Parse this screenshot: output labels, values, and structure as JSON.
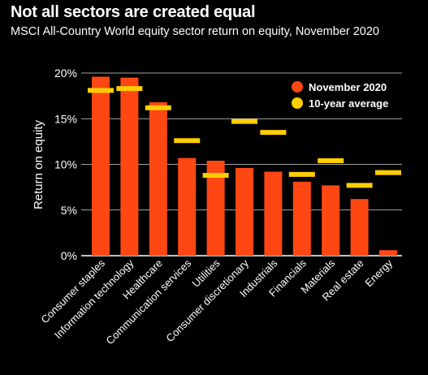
{
  "title": "Not all sectors are created equal",
  "subtitle": "MSCI All-Country World equity sector return on equity, November 2020",
  "colors": {
    "bar": "#FF4713",
    "avg": "#FFCE00",
    "grid": "#ffffff",
    "background": "#000000"
  },
  "chart_data": {
    "type": "bar",
    "ylabel": "Return on equity",
    "ylim": [
      0,
      20
    ],
    "yticks": [
      "0%",
      "5%",
      "10%",
      "15%",
      "20%"
    ],
    "grid": true,
    "legend_position": "top-right",
    "categories": [
      "Consumer staples",
      "Information technology",
      "Healthcare",
      "Communication services",
      "Utilities",
      "Consumer discretionary",
      "Industrials",
      "Financials",
      "Materials",
      "Real estate",
      "Energy"
    ],
    "series": [
      {
        "name": "November 2020",
        "marker": "bar",
        "values": [
          19.6,
          19.5,
          16.8,
          10.7,
          10.4,
          9.6,
          9.2,
          8.1,
          7.7,
          6.2,
          0.6
        ]
      },
      {
        "name": "10-year average",
        "marker": "dash",
        "values": [
          18.1,
          18.3,
          16.2,
          12.6,
          8.8,
          14.7,
          13.5,
          8.9,
          10.4,
          7.7,
          9.1
        ]
      }
    ]
  }
}
